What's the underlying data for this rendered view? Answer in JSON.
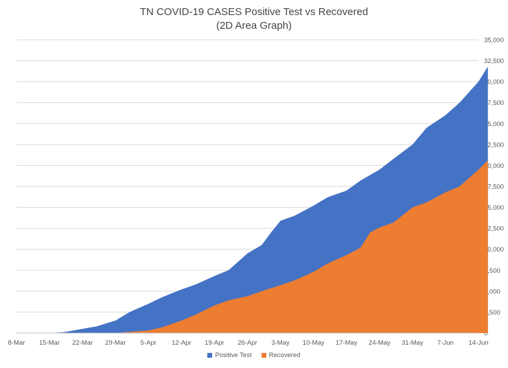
{
  "chart_data": {
    "type": "area",
    "title": "TN COVID-19 CASES Positive Test vs Recovered",
    "subtitle": "(2D Area Graph)",
    "xlabel": "",
    "ylabel": "",
    "x_tick_labels": [
      "8-Mar",
      "15-Mar",
      "22-Mar",
      "29-Mar",
      "5-Apr",
      "12-Apr",
      "19-Apr",
      "26-Apr",
      "3-May",
      "10-May",
      "17-May",
      "24-May",
      "31-May",
      "7-Jun",
      "14-Jun"
    ],
    "y_tick_labels": [
      "0",
      "2,500",
      "5,000",
      "7,500",
      "10,000",
      "12,500",
      "15,000",
      "17,500",
      "20,000",
      "22,500",
      "25,000",
      "27,500",
      "30,000",
      "32,500",
      "35,000"
    ],
    "ylim": [
      0,
      35000
    ],
    "y_axis_side": "right",
    "grid": "horizontal",
    "legend_position": "bottom",
    "x_start_date": "2020-03-08",
    "series": [
      {
        "name": "Positive Test",
        "color": "#4472C4",
        "points": [
          [
            "8-Mar",
            0
          ],
          [
            "15-Mar",
            0
          ],
          [
            "18-Mar",
            100
          ],
          [
            "22-Mar",
            500
          ],
          [
            "25-Mar",
            800
          ],
          [
            "29-Mar",
            1500
          ],
          [
            "1-Apr",
            2500
          ],
          [
            "5-Apr",
            3500
          ],
          [
            "8-Apr",
            4300
          ],
          [
            "12-Apr",
            5200
          ],
          [
            "15-Apr",
            5800
          ],
          [
            "19-Apr",
            6800
          ],
          [
            "22-Apr",
            7500
          ],
          [
            "26-Apr",
            9500
          ],
          [
            "29-Apr",
            10500
          ],
          [
            "1-May",
            12000
          ],
          [
            "3-May",
            13400
          ],
          [
            "6-May",
            14000
          ],
          [
            "10-May",
            15200
          ],
          [
            "13-May",
            16200
          ],
          [
            "17-May",
            17000
          ],
          [
            "20-May",
            18200
          ],
          [
            "24-May",
            19500
          ],
          [
            "27-May",
            20800
          ],
          [
            "31-May",
            22500
          ],
          [
            "3-Jun",
            24500
          ],
          [
            "7-Jun",
            26000
          ],
          [
            "10-Jun",
            27500
          ],
          [
            "14-Jun",
            30000
          ],
          [
            "16-Jun",
            31800
          ]
        ]
      },
      {
        "name": "Recovered",
        "color": "#ED7D31",
        "points": [
          [
            "8-Mar",
            0
          ],
          [
            "29-Mar",
            0
          ],
          [
            "1-Apr",
            150
          ],
          [
            "5-Apr",
            300
          ],
          [
            "8-Apr",
            700
          ],
          [
            "12-Apr",
            1500
          ],
          [
            "15-Apr",
            2200
          ],
          [
            "19-Apr",
            3300
          ],
          [
            "22-Apr",
            3900
          ],
          [
            "26-Apr",
            4400
          ],
          [
            "29-Apr",
            5000
          ],
          [
            "3-May",
            5700
          ],
          [
            "6-May",
            6300
          ],
          [
            "10-May",
            7300
          ],
          [
            "13-May",
            8300
          ],
          [
            "17-May",
            9300
          ],
          [
            "20-May",
            10200
          ],
          [
            "22-May",
            12000
          ],
          [
            "24-May",
            12600
          ],
          [
            "27-May",
            13200
          ],
          [
            "31-May",
            15000
          ],
          [
            "3-Jun",
            15600
          ],
          [
            "7-Jun",
            16800
          ],
          [
            "10-Jun",
            17500
          ],
          [
            "14-Jun",
            19500
          ],
          [
            "16-Jun",
            20600
          ]
        ]
      }
    ]
  }
}
